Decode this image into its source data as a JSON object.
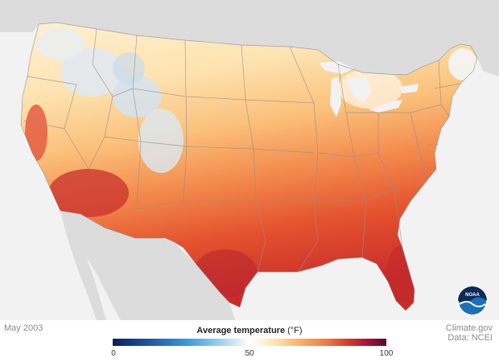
{
  "date_label": "May 2003",
  "logo_text": "NOAA",
  "credit": {
    "line1": "Climate.gov",
    "line2": "Data: NCEI"
  },
  "legend": {
    "title": "Average temperature",
    "unit": "(°F)",
    "min": "0",
    "mid": "50",
    "max": "100",
    "colors": [
      "#0b1e5b",
      "#1f5aa6",
      "#3aa0dc",
      "#a6d3ef",
      "#ffffff",
      "#fde2a8",
      "#f9b469",
      "#f27a43",
      "#d93a2b",
      "#a81535",
      "#5a0a2e"
    ]
  },
  "colors": {
    "land_context": "#dcdcdc",
    "water": "#f2f2f2",
    "state_border": "#8f8f8f",
    "logo_blue": "#1d6fb8",
    "logo_navy": "#0b2a5a"
  }
}
